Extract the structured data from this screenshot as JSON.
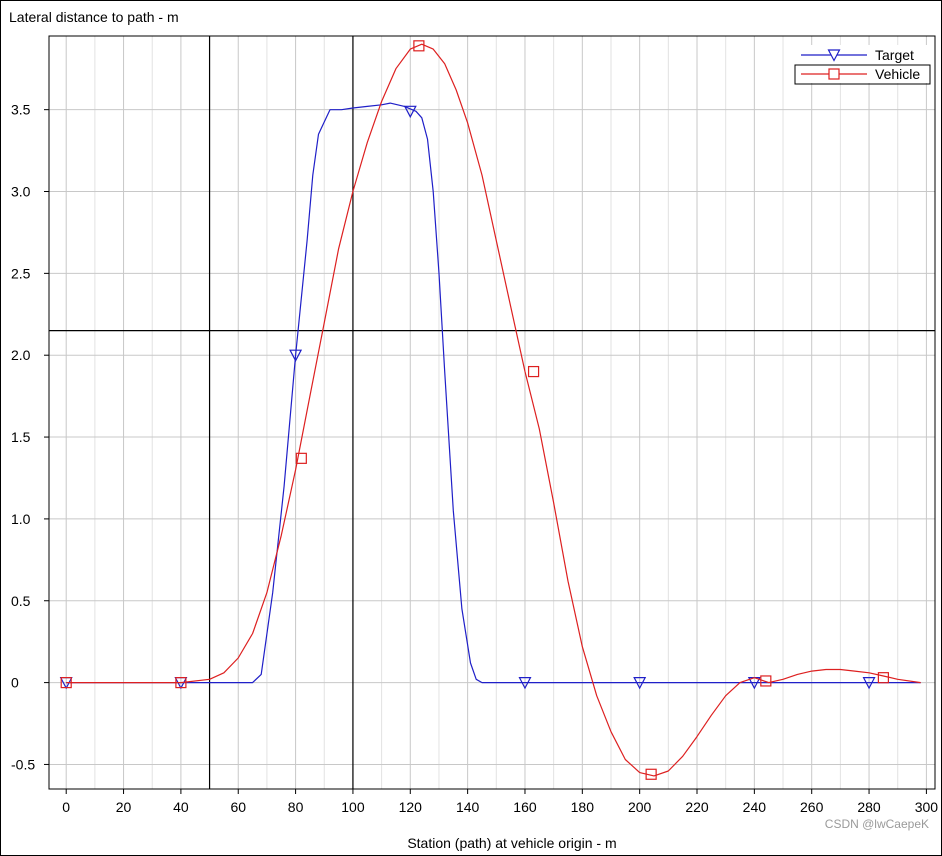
{
  "chart_data": {
    "type": "line",
    "title": "Lateral distance to path - m",
    "xlabel": "Station (path) at vehicle origin - m",
    "ylabel": "",
    "xlim": [
      -6,
      303
    ],
    "ylim": [
      -0.65,
      3.95
    ],
    "xticks": [
      0,
      20,
      40,
      60,
      80,
      100,
      120,
      140,
      160,
      180,
      200,
      220,
      240,
      260,
      280,
      300
    ],
    "xticklabels": [
      "0",
      "20",
      "40",
      "60",
      "80",
      "100",
      "120",
      "140",
      "160",
      "180",
      "200",
      "220",
      "240",
      "260",
      "280",
      "300"
    ],
    "yticks": [
      -0.5,
      0,
      0.5,
      1.0,
      1.5,
      2.0,
      2.5,
      3.0,
      3.5
    ],
    "yticklabels": [
      "-0.5",
      "0",
      "0.5",
      "1.0",
      "1.5",
      "2.0",
      "2.5",
      "3.0",
      "3.5"
    ],
    "grid": true,
    "legend_position": "top-right",
    "crosshair": {
      "x_values": [
        50,
        100
      ],
      "y_value": 2.15
    },
    "series": [
      {
        "name": "Target",
        "color": "#1f1fc8",
        "marker": "triangle-down",
        "x": [
          0,
          40,
          50,
          60,
          65,
          68,
          72,
          76,
          80,
          84,
          86,
          88,
          92,
          96,
          100,
          105,
          110,
          113,
          118,
          122,
          124,
          126,
          128,
          130,
          132,
          135,
          138,
          141,
          143,
          145,
          150,
          160,
          200,
          240,
          280,
          298
        ],
        "y": [
          0,
          0,
          0,
          0,
          0,
          0.05,
          0.55,
          1.2,
          2.0,
          2.7,
          3.1,
          3.35,
          3.5,
          3.5,
          3.51,
          3.52,
          3.53,
          3.54,
          3.52,
          3.49,
          3.45,
          3.32,
          3.0,
          2.5,
          1.9,
          1.05,
          0.45,
          0.12,
          0.02,
          0,
          0,
          0,
          0,
          0,
          0,
          0
        ],
        "markers": {
          "x": [
            0,
            40,
            80,
            120,
            160,
            200,
            240,
            280
          ],
          "y": [
            0,
            0,
            2.0,
            3.49,
            0,
            0,
            0,
            0
          ]
        }
      },
      {
        "name": "Vehicle",
        "color": "#dd2020",
        "marker": "square",
        "x": [
          0,
          40,
          50,
          55,
          60,
          65,
          70,
          75,
          80,
          85,
          90,
          95,
          100,
          105,
          110,
          115,
          120,
          124,
          128,
          132,
          136,
          140,
          145,
          150,
          155,
          160,
          165,
          170,
          175,
          180,
          185,
          190,
          195,
          200,
          205,
          210,
          215,
          220,
          225,
          230,
          235,
          240,
          245,
          250,
          255,
          260,
          265,
          270,
          275,
          280,
          285,
          290,
          298
        ],
        "y": [
          0,
          0,
          0.02,
          0.06,
          0.15,
          0.3,
          0.55,
          0.9,
          1.3,
          1.75,
          2.2,
          2.65,
          3.0,
          3.3,
          3.55,
          3.75,
          3.87,
          3.9,
          3.87,
          3.78,
          3.62,
          3.42,
          3.1,
          2.7,
          2.3,
          1.9,
          1.55,
          1.1,
          0.62,
          0.22,
          -0.08,
          -0.3,
          -0.47,
          -0.55,
          -0.57,
          -0.54,
          -0.45,
          -0.33,
          -0.2,
          -0.08,
          0.0,
          0.03,
          0.0,
          0.02,
          0.05,
          0.07,
          0.08,
          0.08,
          0.07,
          0.06,
          0.04,
          0.02,
          0.0
        ],
        "markers": {
          "x": [
            0,
            40,
            82,
            123,
            163,
            204,
            244,
            285
          ],
          "y": [
            0,
            0,
            1.37,
            3.89,
            1.9,
            -0.56,
            0.01,
            0.03
          ]
        }
      }
    ]
  },
  "watermark": "CSDN @lwCaepeK"
}
